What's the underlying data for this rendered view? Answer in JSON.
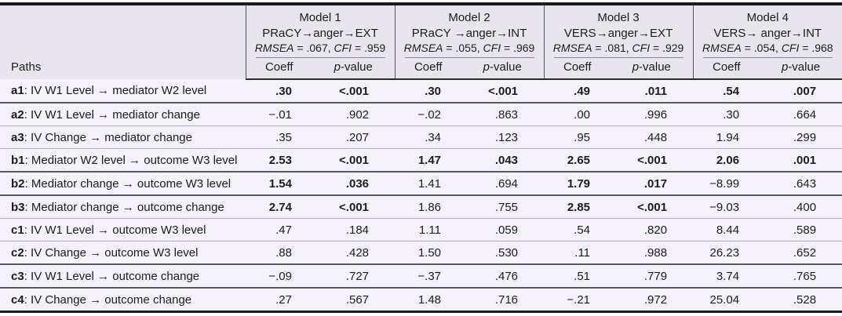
{
  "table": {
    "paths_header": "Paths",
    "label_sep": ": ",
    "col_coeff": "Coeff",
    "col_p_italic": "p",
    "col_p_rest": "-value",
    "fit_eq": " = ",
    "fit_comma": ", ",
    "models": [
      {
        "title": "Model 1",
        "path": "PRaCY→anger→EXT",
        "rmsea_label": "RMSEA",
        "rmsea": ".067",
        "cfi_label": "CFI",
        "cfi": ".959"
      },
      {
        "title": "Model 2",
        "path": "PRaCY →anger→INT",
        "rmsea_label": "RMSEA",
        "rmsea": ".055",
        "cfi_label": "CFI",
        "cfi": ".969"
      },
      {
        "title": "Model 3",
        "path": "VERS→anger→EXT",
        "rmsea_label": "RMSEA",
        "rmsea": ".081",
        "cfi_label": "CFI",
        "cfi": ".929"
      },
      {
        "title": "Model 4",
        "path": "VERS→ anger→INT",
        "rmsea_label": "RMSEA",
        "rmsea": ".054",
        "cfi_label": "CFI",
        "cfi": ".968"
      }
    ],
    "rows": [
      {
        "id": "a1",
        "label": "IV W1 Level → mediator W2 level",
        "cells": [
          {
            "coeff": ".30",
            "p": "<.001",
            "bold": true
          },
          {
            "coeff": ".30",
            "p": "<.001",
            "bold": true
          },
          {
            "coeff": ".49",
            "p": ".011",
            "bold": true
          },
          {
            "coeff": ".54",
            "p": ".007",
            "bold": true
          }
        ]
      },
      {
        "id": "a2",
        "label": "IV W1 Level → mediator change",
        "cells": [
          {
            "coeff": "−.01",
            "p": ".902",
            "bold": false
          },
          {
            "coeff": "−.02",
            "p": ".863",
            "bold": false
          },
          {
            "coeff": ".00",
            "p": ".996",
            "bold": false
          },
          {
            "coeff": ".30",
            "p": ".664",
            "bold": false
          }
        ]
      },
      {
        "id": "a3",
        "label": "IV Change → mediator change",
        "cells": [
          {
            "coeff": ".35",
            "p": ".207",
            "bold": false
          },
          {
            "coeff": ".34",
            "p": ".123",
            "bold": false
          },
          {
            "coeff": ".95",
            "p": ".448",
            "bold": false
          },
          {
            "coeff": "1.94",
            "p": ".299",
            "bold": false
          }
        ]
      },
      {
        "id": "b1",
        "label": "Mediator W2 level → outcome W3 level",
        "cells": [
          {
            "coeff": "2.53",
            "p": "<.001",
            "bold": true
          },
          {
            "coeff": "1.47",
            "p": ".043",
            "bold": true
          },
          {
            "coeff": "2.65",
            "p": "<.001",
            "bold": true
          },
          {
            "coeff": "2.06",
            "p": ".001",
            "bold": true
          }
        ]
      },
      {
        "id": "b2",
        "label": "Mediator change → outcome W3 level",
        "cells": [
          {
            "coeff": "1.54",
            "p": ".036",
            "bold": true
          },
          {
            "coeff": "1.41",
            "p": ".694",
            "bold": false
          },
          {
            "coeff": "1.79",
            "p": ".017",
            "bold": true
          },
          {
            "coeff": "−8.99",
            "p": ".643",
            "bold": false
          }
        ]
      },
      {
        "id": "b3",
        "label": "Mediator change → outcome change",
        "cells": [
          {
            "coeff": "2.74",
            "p": "<.001",
            "bold": true
          },
          {
            "coeff": "1.86",
            "p": ".755",
            "bold": false
          },
          {
            "coeff": "2.85",
            "p": "<.001",
            "bold": true
          },
          {
            "coeff": "−9.03",
            "p": ".400",
            "bold": false
          }
        ]
      },
      {
        "id": "c1",
        "label": "IV W1 Level → outcome W3 level",
        "cells": [
          {
            "coeff": ".47",
            "p": ".184",
            "bold": false
          },
          {
            "coeff": "1.11",
            "p": ".059",
            "bold": false
          },
          {
            "coeff": ".54",
            "p": ".820",
            "bold": false
          },
          {
            "coeff": "8.44",
            "p": ".589",
            "bold": false
          }
        ]
      },
      {
        "id": "c2",
        "label": "IV Change → outcome W3 level",
        "cells": [
          {
            "coeff": ".88",
            "p": ".428",
            "bold": false
          },
          {
            "coeff": "1.50",
            "p": ".530",
            "bold": false
          },
          {
            "coeff": ".11",
            "p": ".988",
            "bold": false
          },
          {
            "coeff": "26.23",
            "p": ".652",
            "bold": false
          }
        ]
      },
      {
        "id": "c3",
        "label": "IV W1 Level → outcome change",
        "cells": [
          {
            "coeff": "−.09",
            "p": ".727",
            "bold": false
          },
          {
            "coeff": "−.37",
            "p": ".476",
            "bold": false
          },
          {
            "coeff": ".51",
            "p": ".779",
            "bold": false
          },
          {
            "coeff": "3.74",
            "p": ".765",
            "bold": false
          }
        ]
      },
      {
        "id": "c4",
        "label": "IV Change → outcome change",
        "cells": [
          {
            "coeff": ".27",
            "p": ".567",
            "bold": false
          },
          {
            "coeff": "1.48",
            "p": ".716",
            "bold": false
          },
          {
            "coeff": "−.21",
            "p": ".972",
            "bold": false
          },
          {
            "coeff": "25.04",
            "p": ".528",
            "bold": false
          }
        ]
      }
    ]
  }
}
